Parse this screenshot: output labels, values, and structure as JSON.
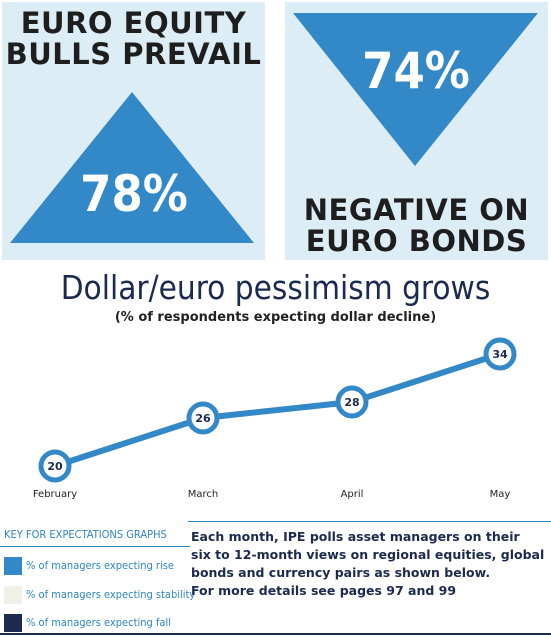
{
  "panels": {
    "left": {
      "title": "EURO EQUITY\nBULLS PREVAIL",
      "value": "78%"
    },
    "right": {
      "value": "74%",
      "title": "NEGATIVE ON\nEURO BONDS"
    }
  },
  "colors": {
    "accent": "#3388c8",
    "panel_bg": "#dcedf6",
    "dark": "#1b2a4e",
    "key_rise": "#3388c8",
    "key_stability": "#f0f0e8",
    "key_fall": "#1b2a4e"
  },
  "chart_data": {
    "type": "line",
    "title": "Dollar/euro pessimism grows",
    "subtitle": "(% of respondents expecting dollar decline)",
    "categories": [
      "February",
      "March",
      "April",
      "May"
    ],
    "values": [
      20,
      26,
      28,
      34
    ],
    "data_labels": [
      "20",
      "26",
      "28",
      "34"
    ],
    "grid": false
  },
  "key": {
    "title": "KEY FOR EXPECTATIONS GRAPHS",
    "items": [
      {
        "label": "% of managers expecting rise"
      },
      {
        "label": "% of managers expecting stability"
      },
      {
        "label": "% of managers expecting fall"
      }
    ]
  },
  "poll_text": "Each month, IPE polls asset managers on their\nsix to 12-month views on regional equities, global\nbonds and currency pairs as shown below.\nFor more details see pages 97 and 99"
}
